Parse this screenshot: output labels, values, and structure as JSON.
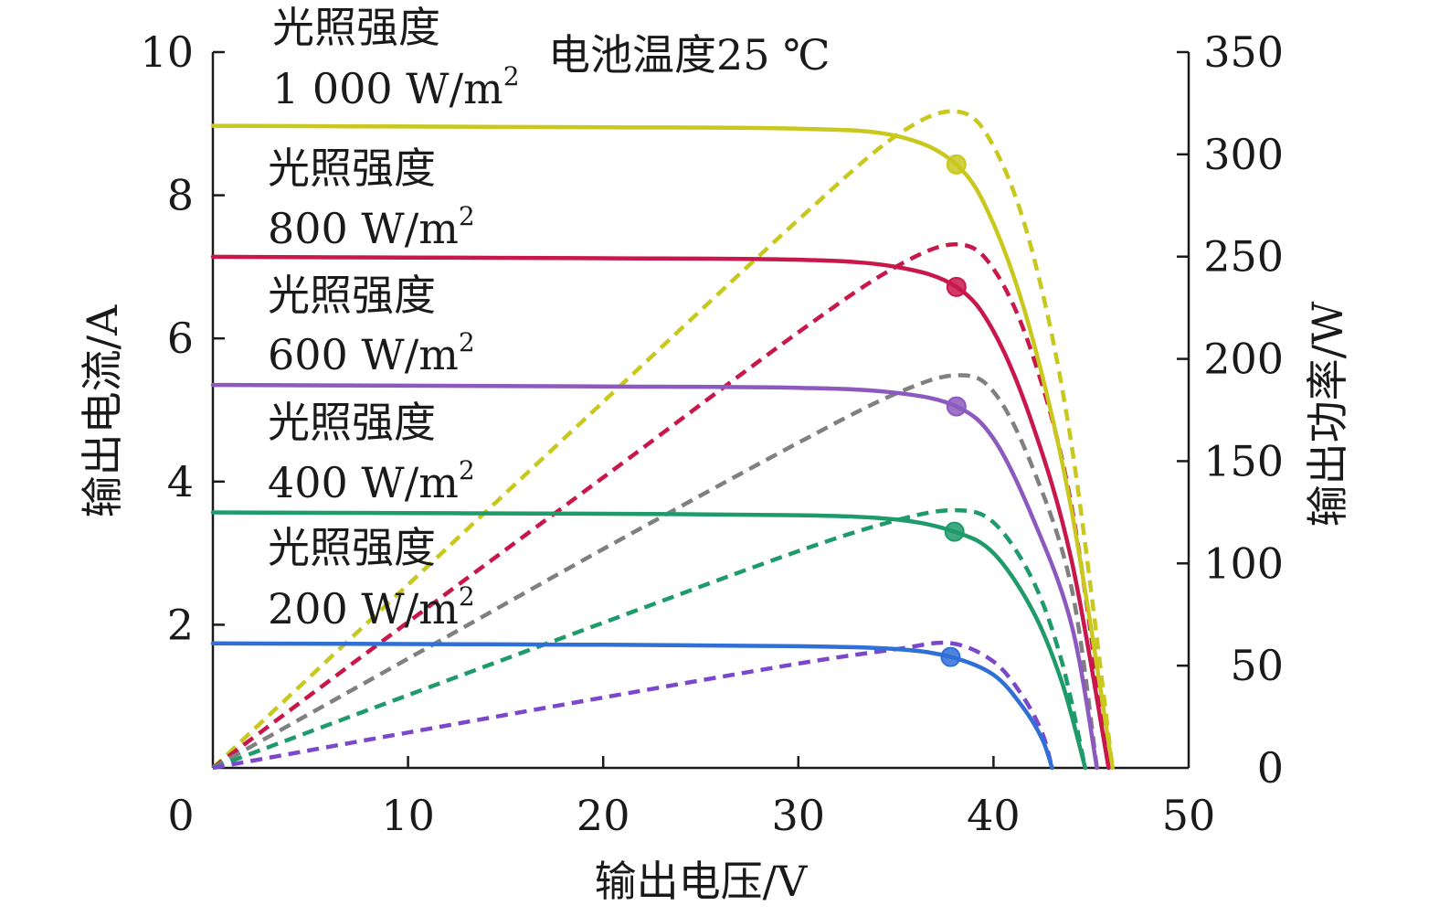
{
  "chart_data": {
    "type": "line",
    "annotation": "电池温度25 ℃",
    "xlabel": "输出电压/V",
    "ylabel_left": "输出电流/A",
    "ylabel_right": "输出功率/W",
    "xlim": [
      0,
      50
    ],
    "ylim_left": [
      0,
      10
    ],
    "ylim_right": [
      0,
      350
    ],
    "x_ticks": [
      0,
      10,
      20,
      30,
      40,
      50
    ],
    "y_left_ticks": [
      2,
      4,
      6,
      8,
      10
    ],
    "y_right_ticks": [
      0,
      50,
      100,
      150,
      200,
      250,
      300,
      350
    ],
    "x_tick_labels": [
      "0",
      "10",
      "20",
      "30",
      "40",
      "50"
    ],
    "y_left_tick_labels": [
      "2",
      "4",
      "6",
      "8",
      "10"
    ],
    "y_right_tick_labels": [
      "0",
      "50",
      "100",
      "150",
      "200",
      "250",
      "300",
      "350"
    ],
    "grid": false,
    "series": [
      {
        "name": "光照强度 1 000 W/m2",
        "label_line1": "光照强度",
        "label_line2": "1 000 W/m",
        "label_sup": "2",
        "color": "#c8c81e",
        "isc": 8.97,
        "voc": 46.1,
        "mpp": {
          "v": 38.1,
          "i": 8.43,
          "p": 321
        },
        "iv_points": [
          [
            0,
            8.97
          ],
          [
            10,
            8.96
          ],
          [
            20,
            8.95
          ],
          [
            30,
            8.93
          ],
          [
            35,
            8.83
          ],
          [
            38.1,
            8.43
          ],
          [
            40,
            7.6
          ],
          [
            42,
            6.0
          ],
          [
            44,
            3.6
          ],
          [
            46.1,
            0
          ]
        ],
        "pv_points": [
          [
            0,
            0
          ],
          [
            10,
            89.6
          ],
          [
            20,
            179
          ],
          [
            30,
            268
          ],
          [
            35,
            309
          ],
          [
            38.1,
            321
          ],
          [
            40,
            304
          ],
          [
            42,
            252
          ],
          [
            44,
            158
          ],
          [
            46.1,
            0
          ]
        ]
      },
      {
        "name": "光照强度 800 W/m2",
        "label_line1": "光照强度",
        "label_line2": "800 W/m",
        "label_sup": "2",
        "color": "#c8174a",
        "isc": 7.14,
        "voc": 45.9,
        "mpp": {
          "v": 38.1,
          "i": 6.72,
          "p": 256
        },
        "iv_points": [
          [
            0,
            7.14
          ],
          [
            10,
            7.13
          ],
          [
            20,
            7.12
          ],
          [
            30,
            7.1
          ],
          [
            35,
            7.0
          ],
          [
            38.1,
            6.72
          ],
          [
            40,
            6.1
          ],
          [
            42,
            4.8
          ],
          [
            44,
            2.9
          ],
          [
            45.9,
            0
          ]
        ],
        "pv_points": [
          [
            0,
            0
          ],
          [
            10,
            71.3
          ],
          [
            20,
            142
          ],
          [
            30,
            213
          ],
          [
            35,
            245
          ],
          [
            38.1,
            256
          ],
          [
            40,
            244
          ],
          [
            42,
            202
          ],
          [
            44,
            128
          ],
          [
            45.9,
            0
          ]
        ]
      },
      {
        "name": "光照强度 600 W/m2",
        "label_line1": "光照强度",
        "label_line2": "600 W/m",
        "label_sup": "2",
        "color": "#8c5abf",
        "dash_color": "#808080",
        "isc": 5.35,
        "voc": 45.3,
        "mpp": {
          "v": 38.1,
          "i": 5.05,
          "p": 192
        },
        "iv_points": [
          [
            0,
            5.35
          ],
          [
            10,
            5.34
          ],
          [
            20,
            5.33
          ],
          [
            30,
            5.31
          ],
          [
            35,
            5.24
          ],
          [
            38.1,
            5.05
          ],
          [
            40,
            4.6
          ],
          [
            42,
            3.5
          ],
          [
            44,
            2.0
          ],
          [
            45.3,
            0
          ]
        ],
        "pv_points": [
          [
            0,
            0
          ],
          [
            10,
            53.4
          ],
          [
            20,
            107
          ],
          [
            30,
            159
          ],
          [
            35,
            183
          ],
          [
            38.1,
            192
          ],
          [
            40,
            184
          ],
          [
            42,
            147
          ],
          [
            44,
            88
          ],
          [
            45.3,
            0
          ]
        ]
      },
      {
        "name": "光照强度 400 W/m2",
        "label_line1": "光照强度",
        "label_line2": "400 W/m",
        "label_sup": "2",
        "color": "#1f9a6b",
        "isc": 3.57,
        "voc": 44.7,
        "mpp": {
          "v": 38.0,
          "i": 3.3,
          "p": 126
        },
        "iv_points": [
          [
            0,
            3.57
          ],
          [
            10,
            3.56
          ],
          [
            20,
            3.55
          ],
          [
            30,
            3.53
          ],
          [
            35,
            3.47
          ],
          [
            38.0,
            3.3
          ],
          [
            40,
            3.0
          ],
          [
            42,
            2.2
          ],
          [
            43.5,
            1.2
          ],
          [
            44.7,
            0
          ]
        ],
        "pv_points": [
          [
            0,
            0
          ],
          [
            10,
            35.6
          ],
          [
            20,
            71
          ],
          [
            30,
            106
          ],
          [
            35,
            121
          ],
          [
            38.0,
            126
          ],
          [
            40,
            120
          ],
          [
            42,
            92
          ],
          [
            43.5,
            52
          ],
          [
            44.7,
            0
          ]
        ]
      },
      {
        "name": "光照强度 200 W/m2",
        "label_line1": "光照强度",
        "label_line2": "200 W/m",
        "label_sup": "2",
        "color": "#2f6fd6",
        "dash_color": "#7b48cc",
        "isc": 1.74,
        "voc": 43.0,
        "mpp": {
          "v": 37.8,
          "i": 1.55,
          "p": 61
        },
        "iv_points": [
          [
            0,
            1.74
          ],
          [
            10,
            1.73
          ],
          [
            20,
            1.72
          ],
          [
            30,
            1.7
          ],
          [
            35,
            1.66
          ],
          [
            37.8,
            1.55
          ],
          [
            40,
            1.3
          ],
          [
            41.5,
            0.85
          ],
          [
            42.5,
            0.4
          ],
          [
            43.0,
            0
          ]
        ],
        "pv_points": [
          [
            0,
            0
          ],
          [
            10,
            17.3
          ],
          [
            20,
            34.4
          ],
          [
            30,
            51
          ],
          [
            35,
            58
          ],
          [
            37.8,
            61
          ],
          [
            40,
            52
          ],
          [
            41.5,
            35
          ],
          [
            42.5,
            17
          ],
          [
            43.0,
            0
          ]
        ]
      }
    ]
  }
}
